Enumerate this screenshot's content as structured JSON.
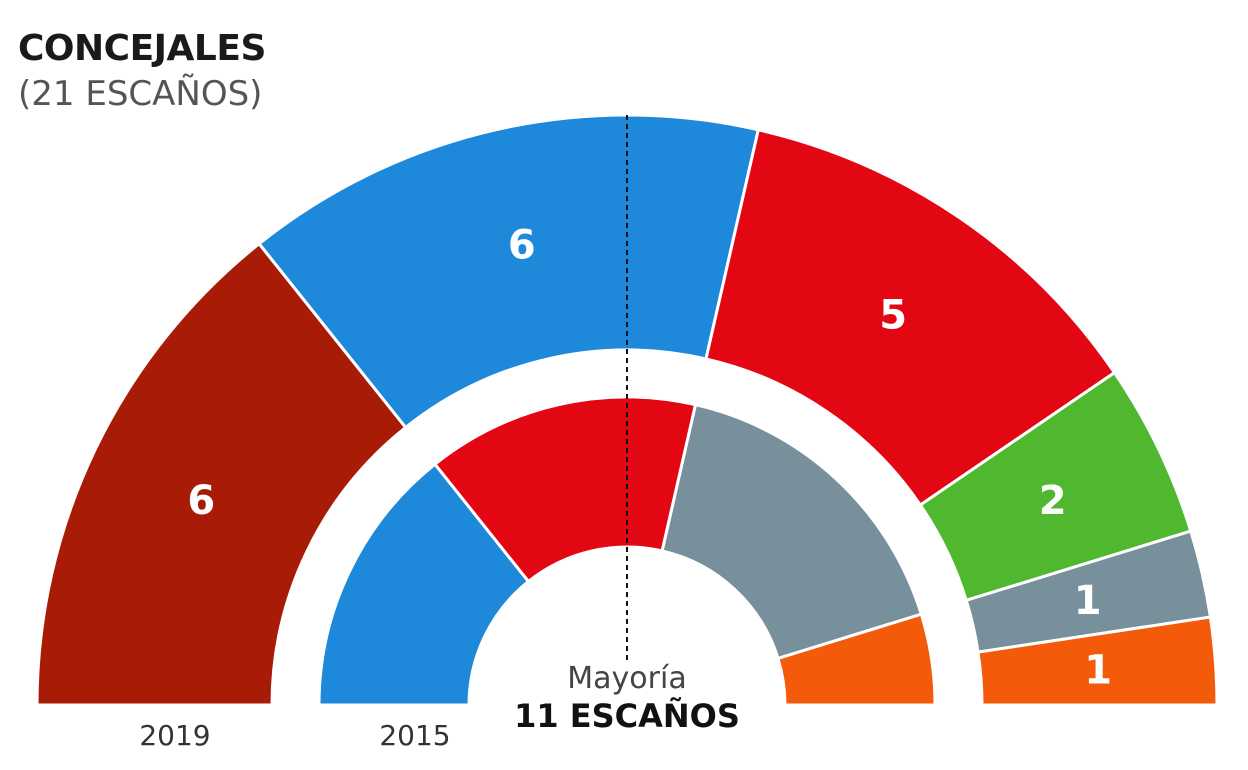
{
  "title": "CONCEJALES",
  "subtitle": "(21 ESCAÑOS)",
  "majority": {
    "label": "Mayoría",
    "value": "11 ESCAÑOS"
  },
  "chart_data": {
    "type": "parliament_semicircle",
    "total_seats": 21,
    "rings": [
      {
        "name": "2019",
        "seats": [
          {
            "seats": 6,
            "color": "#a81c07",
            "label": "6"
          },
          {
            "seats": 6,
            "color": "#1e88db",
            "label": "6"
          },
          {
            "seats": 5,
            "color": "#e30613",
            "label": "5"
          },
          {
            "seats": 2,
            "color": "#4fb82f",
            "label": "2"
          },
          {
            "seats": 1,
            "color": "#78909c",
            "label": "1"
          },
          {
            "seats": 1,
            "color": "#f35a0a",
            "label": "1"
          }
        ]
      },
      {
        "name": "2015",
        "seats": [
          {
            "seats": 0,
            "color": "#a81c07",
            "label": ""
          },
          {
            "seats": 6,
            "color": "#1e88db",
            "label": ""
          },
          {
            "seats": 6,
            "color": "#e30613",
            "label": ""
          },
          {
            "seats": 7,
            "color": "#78909c",
            "label": ""
          },
          {
            "seats": 2,
            "color": "#f35a0a",
            "label": ""
          }
        ]
      }
    ]
  }
}
